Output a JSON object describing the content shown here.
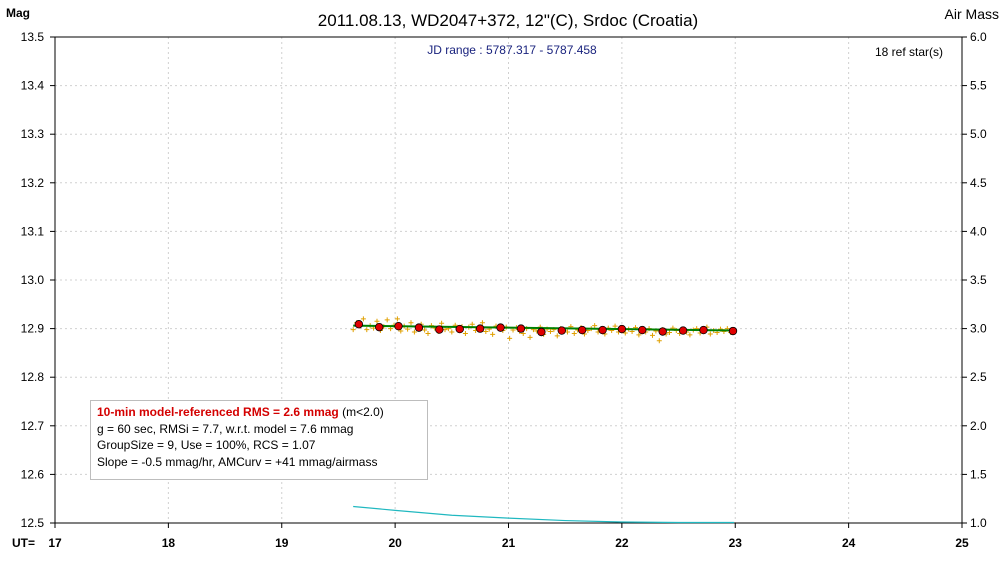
{
  "chart_data": {
    "type": "scatter",
    "title": "2011.08.13, WD2047+372, 12\"(C), Srdoc (Croatia)",
    "subtitle": "JD range : 5787.317 - 5787.458",
    "ref_stars": "18 ref star(s)",
    "y_left_label": "Mag",
    "y_right_label": "Air Mass",
    "x_label": "UT=",
    "xlim": [
      17,
      25
    ],
    "ylim": [
      13.5,
      12.5
    ],
    "y2lim": [
      1.0,
      6.0
    ],
    "x_ticks": [
      "17",
      "18",
      "19",
      "20",
      "21",
      "22",
      "23",
      "24",
      "25"
    ],
    "y_ticks": [
      "12.5",
      "12.6",
      "12.7",
      "12.8",
      "12.9",
      "13.0",
      "13.1",
      "13.2",
      "13.3",
      "13.4",
      "13.5"
    ],
    "y2_ticks": [
      "6.0",
      "5.5",
      "5.0",
      "4.5",
      "4.0",
      "3.5",
      "3.0",
      "2.5",
      "2.0",
      "1.5",
      "1.0"
    ],
    "grid": true,
    "series": [
      {
        "type": "points",
        "x": [
          19.63,
          19.66,
          19.69,
          19.72,
          19.75,
          19.78,
          19.81,
          19.84,
          19.87,
          19.9,
          19.93,
          19.96,
          19.99,
          20.02,
          20.05,
          20.08,
          20.11,
          20.14,
          20.17,
          20.2,
          20.23,
          20.26,
          20.29,
          20.32,
          20.35,
          20.38,
          20.41,
          20.44,
          20.47,
          20.5,
          20.53,
          20.56,
          20.59,
          20.62,
          20.65,
          20.68,
          20.71,
          20.74,
          20.77,
          20.8,
          20.83,
          20.86,
          20.89,
          20.92,
          20.95,
          20.98,
          21.01,
          21.04,
          21.07,
          21.1,
          21.13,
          21.16,
          21.19,
          21.22,
          21.25,
          21.28,
          21.31,
          21.34,
          21.37,
          21.4,
          21.43,
          21.46,
          21.49,
          21.52,
          21.55,
          21.58,
          21.61,
          21.64,
          21.67,
          21.7,
          21.73,
          21.76,
          21.79,
          21.82,
          21.85,
          21.88,
          21.91,
          21.94,
          21.97,
          22.0,
          22.03,
          22.06,
          22.09,
          22.12,
          22.15,
          22.18,
          22.21,
          22.24,
          22.27,
          22.3,
          22.33,
          22.36,
          22.39,
          22.42,
          22.45,
          22.48,
          22.51,
          22.54,
          22.57,
          22.6,
          22.63,
          22.66,
          22.69,
          22.72,
          22.75,
          22.78,
          22.81,
          22.84,
          22.87,
          22.9,
          22.93,
          22.96,
          22.99
        ],
        "y": [
          12.898,
          12.912,
          12.905,
          12.92,
          12.898,
          12.906,
          12.901,
          12.915,
          12.896,
          12.904,
          12.918,
          12.9,
          12.907,
          12.92,
          12.895,
          12.905,
          12.899,
          12.912,
          12.893,
          12.902,
          12.909,
          12.897,
          12.89,
          12.906,
          12.901,
          12.894,
          12.911,
          12.898,
          12.9,
          12.893,
          12.907,
          12.899,
          12.904,
          12.89,
          12.903,
          12.909,
          12.896,
          12.901,
          12.912,
          12.894,
          12.899,
          12.888,
          12.905,
          12.9,
          12.896,
          12.903,
          12.88,
          12.897,
          12.902,
          12.894,
          12.89,
          12.9,
          12.882,
          12.898,
          12.895,
          12.903,
          12.888,
          12.899,
          12.894,
          12.898,
          12.885,
          12.9,
          12.896,
          12.893,
          12.904,
          12.89,
          12.897,
          12.902,
          12.889,
          12.896,
          12.9,
          12.906,
          12.893,
          12.898,
          12.889,
          12.901,
          12.896,
          12.905,
          12.893,
          12.898,
          12.891,
          12.899,
          12.894,
          12.902,
          12.887,
          12.897,
          12.893,
          12.9,
          12.886,
          12.895,
          12.875,
          12.898,
          12.889,
          12.892,
          12.901,
          12.896,
          12.89,
          12.898,
          12.893,
          12.887,
          12.897,
          12.9,
          12.891,
          12.895,
          12.903,
          12.889,
          12.896,
          12.892,
          12.899,
          12.894,
          12.9,
          12.892,
          12.897
        ]
      },
      {
        "type": "binned",
        "x": [
          19.68,
          19.86,
          20.03,
          20.21,
          20.39,
          20.57,
          20.75,
          20.93,
          21.11,
          21.29,
          21.47,
          21.65,
          21.83,
          22.0,
          22.18,
          22.36,
          22.54,
          22.72,
          22.98
        ],
        "y": [
          12.909,
          12.903,
          12.905,
          12.902,
          12.898,
          12.899,
          12.9,
          12.902,
          12.9,
          12.893,
          12.896,
          12.897,
          12.897,
          12.899,
          12.897,
          12.894,
          12.896,
          12.897,
          12.895
        ]
      },
      {
        "type": "model",
        "x": [
          19.63,
          22.99
        ],
        "y": [
          12.906,
          12.896
        ]
      },
      {
        "type": "airmass",
        "axis": "right",
        "x": [
          19.63,
          20.0,
          20.5,
          21.0,
          21.5,
          22.0,
          22.5,
          22.99
        ],
        "y": [
          1.17,
          1.13,
          1.08,
          1.05,
          1.025,
          1.01,
          1.005,
          1.005
        ]
      }
    ]
  },
  "stats": {
    "line1_red": "10-min model-referenced RMS = 2.6 mmag",
    "line1_suffix": " (m<2.0)",
    "line2": "g = 60 sec, RMSi = 7.7, w.r.t. model = 7.6 mmag",
    "line3": "GroupSize = 9, Use = 100%, RCS = 1.07",
    "line4": "Slope = -0.5 mmag/hr, AMCurv = +41 mmag/airmass"
  },
  "colors": {
    "points": "#e0a000",
    "binned_fill": "#e00000",
    "model_line": "#008000",
    "airmass_line": "#20b8c0",
    "title_text": "#000000",
    "subtitle_text": "#1a237e",
    "grid": "#d0d0d0"
  }
}
